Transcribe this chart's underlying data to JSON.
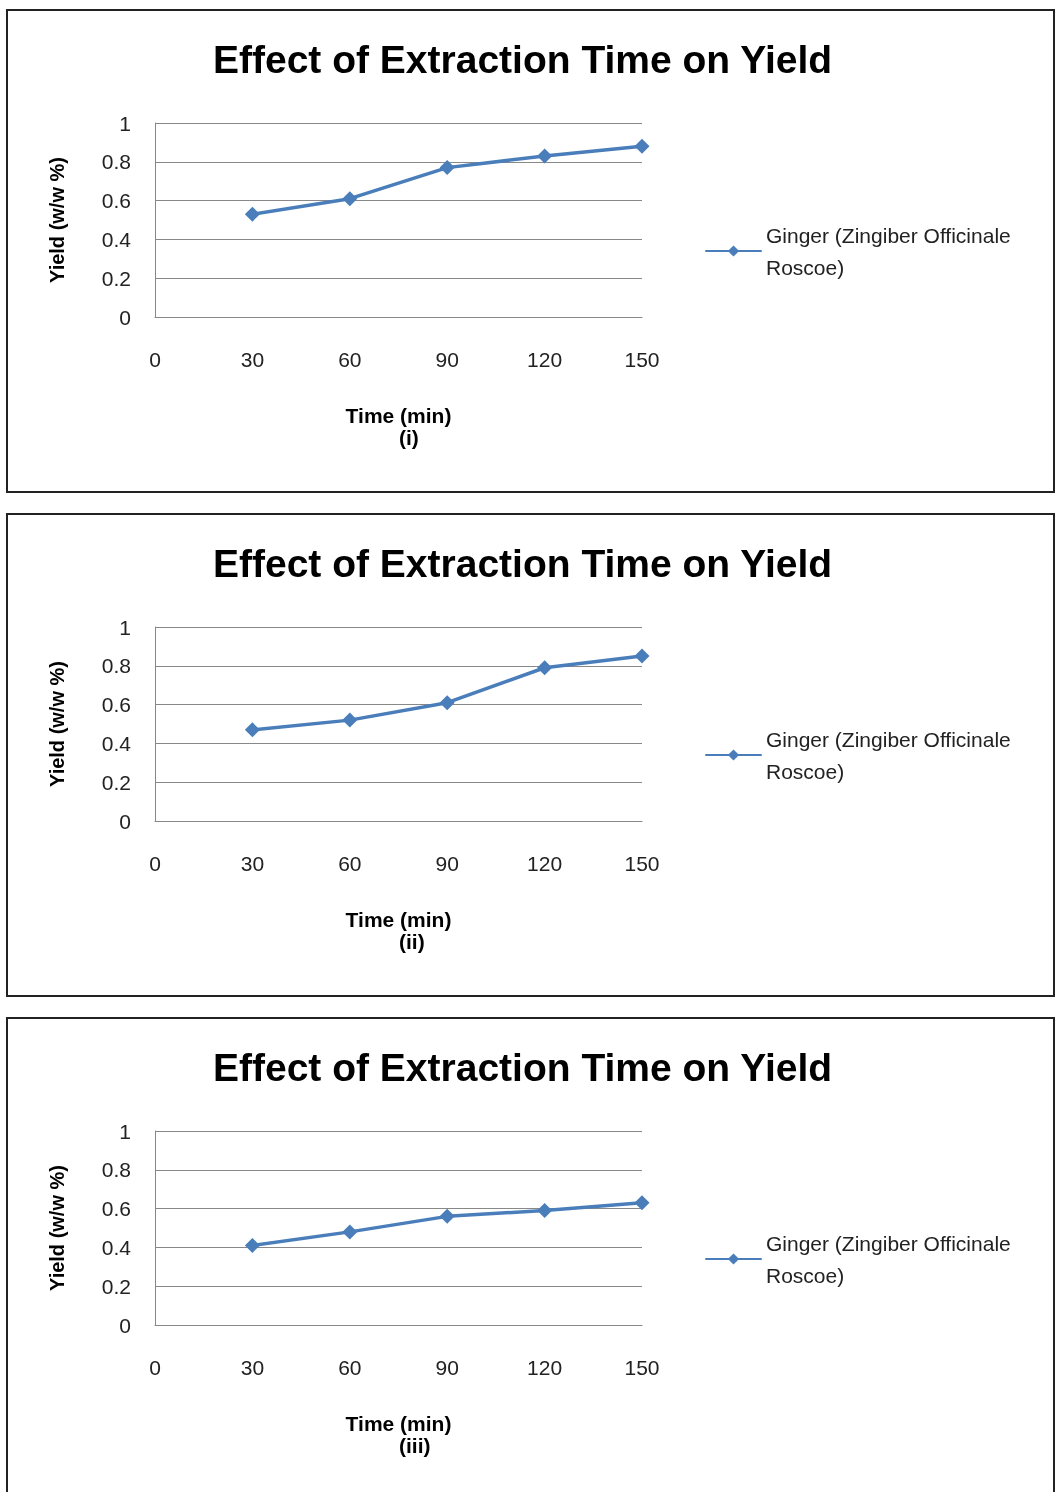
{
  "chart_data": [
    {
      "type": "line",
      "title": "Effect of Extraction Time on Yield",
      "xlabel": "Time (min)",
      "ylabel": "Yield (w/w %)",
      "annotations": [
        "(i)"
      ],
      "x": [
        30,
        60,
        90,
        120,
        150
      ],
      "series": [
        {
          "name": "Ginger (Zingiber Officinale Roscoe)",
          "color": "#4a7ebb",
          "values": [
            0.53,
            0.61,
            0.77,
            0.83,
            0.88
          ]
        }
      ],
      "xlim": [
        0,
        150
      ],
      "xticks": [
        0,
        30,
        60,
        90,
        120,
        150
      ],
      "ylim": [
        0,
        1
      ],
      "yticks": [
        0,
        0.2,
        0.4,
        0.6,
        0.8,
        1
      ],
      "grid": "y",
      "legend": "right",
      "marker": "diamond",
      "line_style": "solid"
    },
    {
      "type": "line",
      "title": "Effect of Extraction Time on Yield",
      "xlabel": "Time (min)",
      "ylabel": "Yield (w/w %)",
      "annotations": [
        "(ii)"
      ],
      "x": [
        30,
        60,
        90,
        120,
        150
      ],
      "series": [
        {
          "name": "Ginger (Zingiber Officinale Roscoe)",
          "color": "#4a7ebb",
          "values": [
            0.47,
            0.52,
            0.61,
            0.79,
            0.85
          ]
        }
      ],
      "xlim": [
        0,
        150
      ],
      "xticks": [
        0,
        30,
        60,
        90,
        120,
        150
      ],
      "ylim": [
        0,
        1
      ],
      "yticks": [
        0,
        0.2,
        0.4,
        0.6,
        0.8,
        1
      ],
      "grid": "y",
      "legend": "right",
      "marker": "diamond",
      "line_style": "solid"
    },
    {
      "type": "line",
      "title": "Effect of Extraction Time on Yield",
      "xlabel": "Time (min)",
      "ylabel": "Yield (w/w %)",
      "annotations": [
        "(iii)"
      ],
      "x": [
        30,
        60,
        90,
        120,
        150
      ],
      "series": [
        {
          "name": "Ginger (Zingiber Officinale Roscoe)",
          "color": "#4a7ebb",
          "values": [
            0.41,
            0.48,
            0.56,
            0.59,
            0.63
          ]
        }
      ],
      "xlim": [
        0,
        150
      ],
      "xticks": [
        0,
        30,
        60,
        90,
        120,
        150
      ],
      "ylim": [
        0,
        1
      ],
      "yticks": [
        0,
        0.2,
        0.4,
        0.6,
        0.8,
        1
      ],
      "grid": "y",
      "legend": "right",
      "marker": "diamond",
      "line_style": "solid"
    }
  ]
}
